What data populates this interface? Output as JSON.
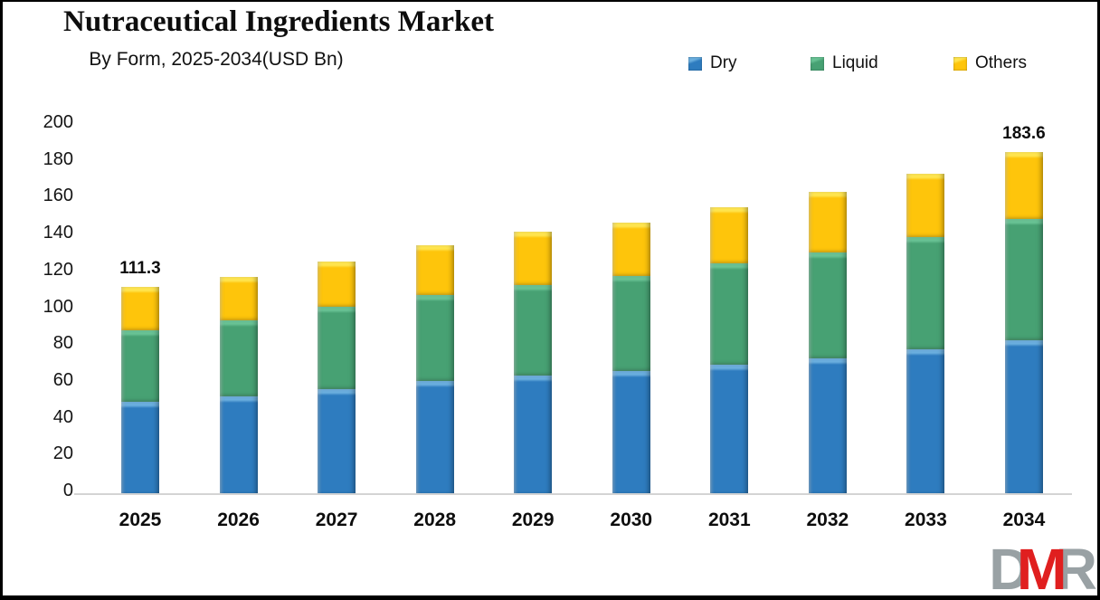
{
  "header": {
    "title": "Nutraceutical Ingredients Market",
    "subtitle": "By Form, 2025-2034(USD Bn)"
  },
  "chart_data": {
    "type": "bar",
    "stacked": true,
    "title": "Nutraceutical Ingredients Market",
    "subtitle": "By Form, 2025-2034(USD Bn)",
    "unit": "USD Bn",
    "categories": [
      "2025",
      "2026",
      "2027",
      "2028",
      "2029",
      "2030",
      "2031",
      "2032",
      "2033",
      "2034"
    ],
    "series": [
      {
        "name": "Dry",
        "color": "#2e7cbf",
        "highlight": "#6aaede",
        "values": [
          50,
          53,
          56.5,
          61,
          64,
          66.5,
          69.5,
          73,
          78,
          83
        ]
      },
      {
        "name": "Liquid",
        "color": "#47a173",
        "highlight": "#68c294",
        "values": [
          38,
          40.5,
          44,
          46,
          48.5,
          50.5,
          54.5,
          57,
          60,
          64.5
        ]
      },
      {
        "name": "Others",
        "color": "#fec50b",
        "highlight": "#ffe54f",
        "values": [
          23.3,
          23.3,
          24.5,
          26.7,
          28.5,
          29,
          30,
          32,
          34,
          36.1
        ]
      }
    ],
    "totals": [
      111.3,
      116.8,
      125,
      133.7,
      141,
      146,
      154,
      162,
      172,
      183.6
    ],
    "bar_labels": [
      "111.3",
      "",
      "",
      "",
      "",
      "",
      "",
      "",
      "",
      "183.6"
    ],
    "ylim": [
      0,
      200
    ],
    "yticks": [
      0,
      20,
      40,
      60,
      80,
      100,
      120,
      140,
      160,
      180,
      200
    ],
    "legend_position": "top-right",
    "grid": false
  },
  "watermark": {
    "letters": [
      {
        "char": "D",
        "color": "#99a1a4"
      },
      {
        "char": "M",
        "color": "#e01f1f"
      },
      {
        "char": "R",
        "color": "#99a1a4"
      }
    ]
  }
}
